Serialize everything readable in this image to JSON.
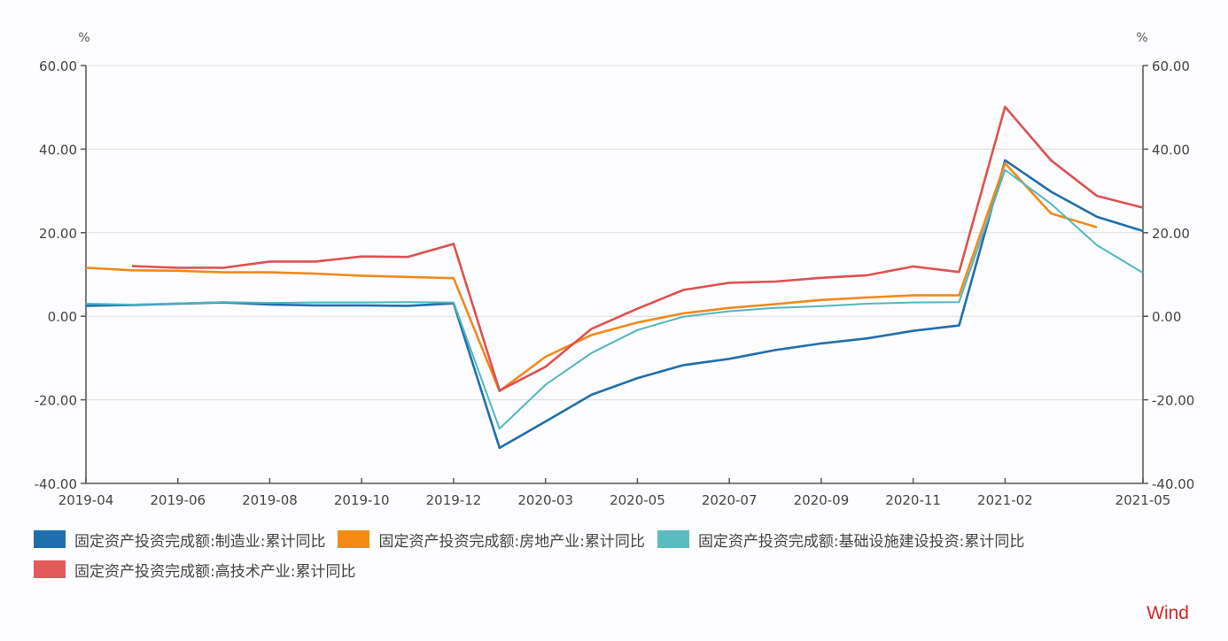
{
  "chart_data": {
    "type": "line",
    "title": "",
    "xlabel": "",
    "ylabel": "%",
    "ylabel_right": "%",
    "ylim": [
      -40,
      60
    ],
    "yticks": [
      "60.00",
      "40.00",
      "20.00",
      "0.00",
      "-20.00",
      "-40.00"
    ],
    "yticks_values": [
      60,
      40,
      20,
      0,
      -20,
      -40
    ],
    "xtick_labels": [
      "2019-04",
      "2019-06",
      "2019-08",
      "2019-10",
      "2019-12",
      "2020-03",
      "2020-05",
      "2020-07",
      "2020-09",
      "2020-11",
      "2021-02",
      "2021-05"
    ],
    "x": [
      "2019-04",
      "2019-05",
      "2019-06",
      "2019-07",
      "2019-08",
      "2019-09",
      "2019-10",
      "2019-11",
      "2019-12",
      "2020-02",
      "2020-03",
      "2020-04",
      "2020-05",
      "2020-06",
      "2020-07",
      "2020-08",
      "2020-09",
      "2020-10",
      "2020-11",
      "2020-12",
      "2021-02",
      "2021-03",
      "2021-04",
      "2021-05"
    ],
    "grid": true,
    "legend_position": "bottom",
    "series": [
      {
        "name": "固定资产投资完成额:制造业:累计同比",
        "color": "#1f6fae",
        "values": [
          2.5,
          2.7,
          3.0,
          3.3,
          2.8,
          2.6,
          2.6,
          2.5,
          3.1,
          -31.5,
          -25.2,
          -18.8,
          -14.8,
          -11.7,
          -10.2,
          -8.1,
          -6.5,
          -5.3,
          -3.5,
          -2.2,
          37.3,
          29.8,
          23.8,
          20.4
        ]
      },
      {
        "name": "固定资产投资完成额:房地产业:累计同比",
        "color": "#f08a1c",
        "values": [
          11.6,
          11.0,
          10.9,
          10.5,
          10.5,
          10.2,
          9.7,
          9.4,
          9.1,
          -17.9,
          -9.7,
          -4.5,
          -1.5,
          0.7,
          2.0,
          2.9,
          3.9,
          4.5,
          5.0,
          5.0,
          36.6,
          24.6,
          21.3,
          null
        ]
      },
      {
        "name": "固定资产投资完成额:基础设施建设投资:累计同比",
        "color": "#4fb8bf",
        "values": [
          3.0,
          2.8,
          3.1,
          3.4,
          3.2,
          3.3,
          3.3,
          3.4,
          3.3,
          -26.9,
          -16.4,
          -8.8,
          -3.3,
          -0.1,
          1.2,
          2.0,
          2.4,
          3.0,
          3.3,
          3.4,
          35.0,
          26.9,
          17.0,
          10.4
        ]
      },
      {
        "name": "固定资产投资完成额:高技术产业:累计同比",
        "color": "#e05050",
        "values": [
          null,
          12.0,
          11.6,
          11.6,
          13.1,
          13.1,
          14.3,
          14.2,
          17.3,
          -17.8,
          -12.1,
          -3.0,
          1.8,
          6.3,
          8.0,
          8.3,
          9.2,
          9.8,
          11.9,
          10.6,
          50.1,
          37.3,
          28.8,
          26.0
        ]
      }
    ]
  },
  "legend": {
    "items": [
      {
        "label": "固定资产投资完成额:制造业:累计同比",
        "color": "#1f6fae"
      },
      {
        "label": "固定资产投资完成额:房地产业:累计同比",
        "color": "#f58b14"
      },
      {
        "label": "固定资产投资完成额:基础设施建设投资:累计同比",
        "color": "#5bbcc0"
      },
      {
        "label": "固定资产投资完成额:高技术产业:累计同比",
        "color": "#e35a5a"
      }
    ]
  },
  "watermark": "Wind",
  "units": {
    "left": "%",
    "right": "%"
  }
}
